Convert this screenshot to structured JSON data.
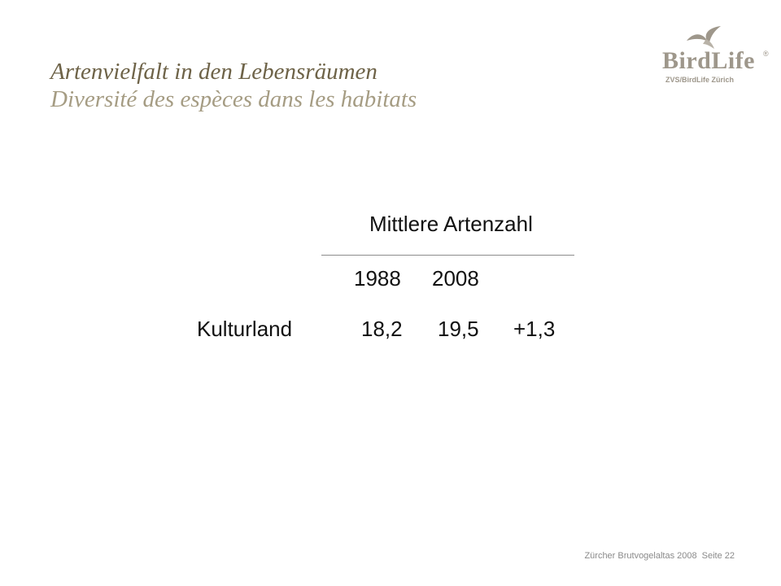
{
  "title": {
    "german": "Artenvielfalt in den Lebensräumen",
    "french": "Diversité des espèces dans les habitats"
  },
  "logo": {
    "wordmark": "BirdLife",
    "registered": "®",
    "subtitle": "ZVS/BirdLife Zürich"
  },
  "table": {
    "header": "Mittlere Artenzahl",
    "years": [
      "1988",
      "2008"
    ],
    "rows": [
      {
        "label": "Kulturland",
        "v1988": "18,2",
        "v2008": "19,5",
        "change": "+1,3"
      }
    ]
  },
  "footer": {
    "publication": "Zürcher Brutvogelaltas 2008",
    "page": "Seite 22"
  },
  "colors": {
    "title_primary": "#6e6348",
    "title_secondary": "#a59c83",
    "logo": "#9e978b"
  }
}
